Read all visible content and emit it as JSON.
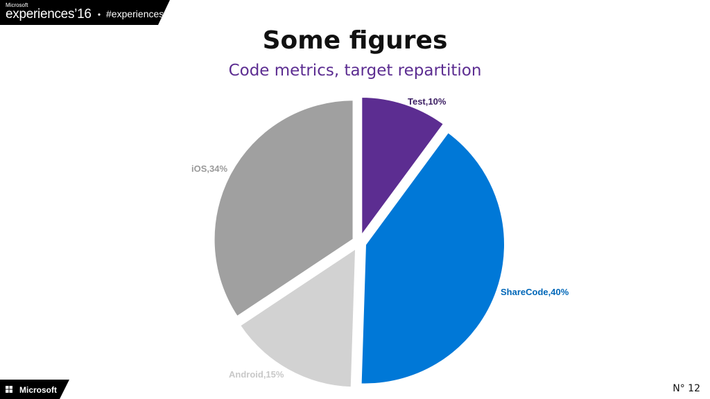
{
  "header": {
    "brand_company": "Microsoft",
    "brand_event": "experiences’16",
    "brand_hashtag": "#experiences"
  },
  "slide": {
    "title": "Some figures",
    "subtitle": "Code metrics, target repartition"
  },
  "chart_data": {
    "type": "pie",
    "title": "",
    "slices": [
      {
        "name": "Test",
        "value": 10,
        "label": "Test,10%",
        "color": "#5c2d91"
      },
      {
        "name": "ShareCode",
        "value": 40,
        "label": "ShareCode,40%",
        "color": "#0078d7"
      },
      {
        "name": "Android",
        "value": 15,
        "label": "Android,15%",
        "color": "#d2d2d2"
      },
      {
        "name": "iOS",
        "value": 34,
        "label": "iOS,34%",
        "color": "#a0a0a0"
      }
    ],
    "legend": "none",
    "exploded": true
  },
  "footer": {
    "logo_text": "Microsoft",
    "page_number": "N° 12"
  },
  "colors": {
    "banner": "#000000",
    "accent": "#5c2d91",
    "logo_squares": [
      "#f25022",
      "#7fba00",
      "#00a4ef",
      "#ffb900"
    ]
  }
}
